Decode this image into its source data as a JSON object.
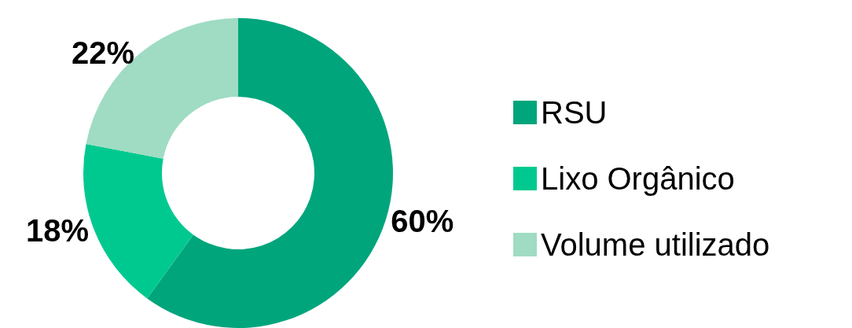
{
  "chart_data": {
    "type": "donut",
    "categories": [
      "RSU",
      "Lixo Orgânico",
      "Volume utilizado"
    ],
    "values": [
      60,
      18,
      22
    ],
    "colors": [
      "#00a57c",
      "#00c98f",
      "#9fdcc3"
    ],
    "value_labels": [
      "60%",
      "18%",
      "22%"
    ],
    "legend": "right"
  }
}
